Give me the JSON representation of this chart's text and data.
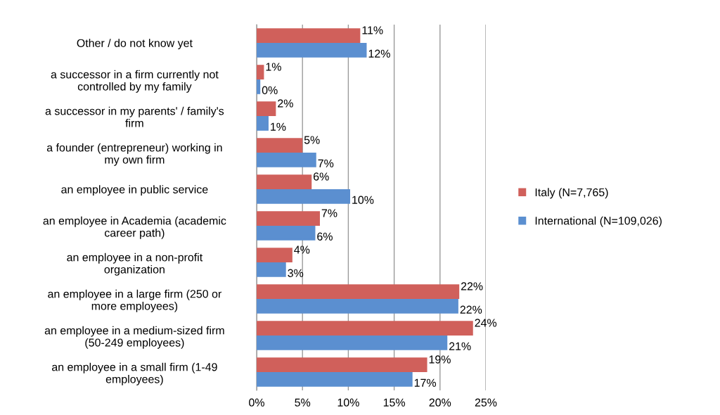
{
  "chart_data": {
    "type": "bar",
    "orientation": "horizontal",
    "categories": [
      "Other / do not know yet",
      "a successor in a firm currently not\ncontrolled by my family",
      "a successor in my parents' / family's\nfirm",
      "a founder (entrepreneur) working in\nmy own firm",
      "an employee in public service",
      "an employee in Academia (academic\ncareer path)",
      "an employee in a non-profit\norganization",
      "an employee in a large firm (250 or\nmore employees)",
      "an employee in a medium-sized firm\n(50-249 employees)",
      "an employee in a small firm (1-49\nemployees)"
    ],
    "series": [
      {
        "name": "Italy (N=7,765)",
        "color": "#d0605b",
        "values": [
          11.3,
          0.8,
          2.1,
          5.0,
          6.0,
          6.9,
          3.9,
          22.1,
          23.6,
          18.6
        ],
        "value_labels": [
          "11%",
          "1%",
          "2%",
          "5%",
          "6%",
          "7%",
          "4%",
          "22%",
          "24%",
          "19%"
        ]
      },
      {
        "name": "International (N=109,026)",
        "color": "#5b8fd0",
        "values": [
          12.0,
          0.4,
          1.3,
          6.5,
          10.2,
          6.4,
          3.2,
          22.0,
          20.8,
          17.0
        ],
        "value_labels": [
          "12%",
          "0%",
          "1%",
          "7%",
          "10%",
          "6%",
          "3%",
          "22%",
          "21%",
          "17%"
        ]
      }
    ],
    "xlim": [
      0,
      25
    ],
    "xticks": [
      {
        "value": 0,
        "label": "0%"
      },
      {
        "value": 5,
        "label": "5%"
      },
      {
        "value": 10,
        "label": "10%"
      },
      {
        "value": 15,
        "label": "15%"
      },
      {
        "value": 20,
        "label": "20%"
      },
      {
        "value": 25,
        "label": "25%"
      }
    ],
    "grid": "x",
    "legend": "right"
  }
}
